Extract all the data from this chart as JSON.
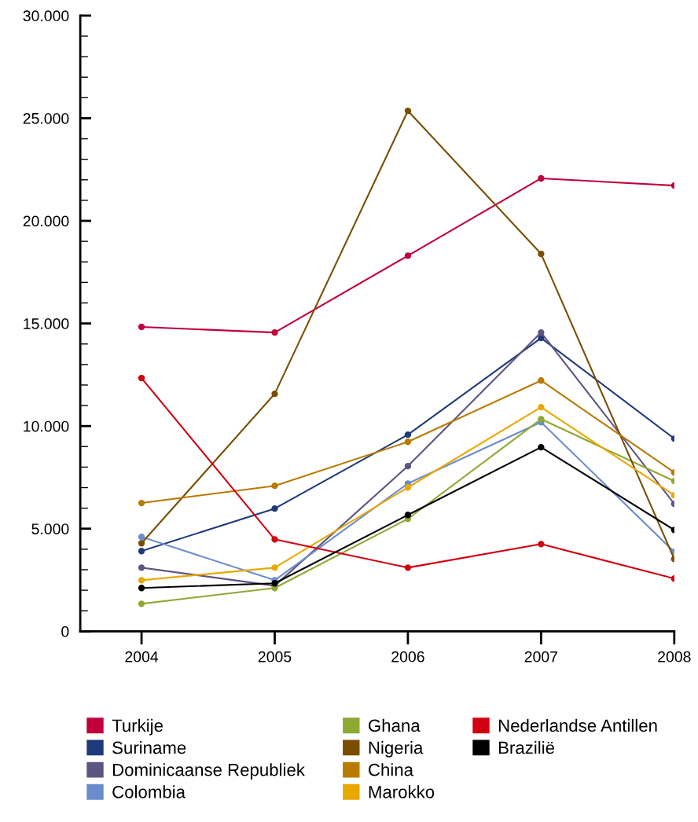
{
  "chart_data": {
    "type": "line",
    "x": [
      2004,
      2005,
      2006,
      2007,
      2008
    ],
    "xlim": [
      2003.54,
      2008
    ],
    "xticks": [
      2004,
      2005,
      2006,
      2007,
      2008
    ],
    "ylim": [
      0,
      30000
    ],
    "yticks": [
      {
        "value": 0,
        "label": "0"
      },
      {
        "value": 1000,
        "label": null
      },
      {
        "value": 2000,
        "label": null
      },
      {
        "value": 3000,
        "label": null
      },
      {
        "value": 4000,
        "label": null
      },
      {
        "value": 5000,
        "label": "5.000"
      },
      {
        "value": 6000,
        "label": null
      },
      {
        "value": 7000,
        "label": null
      },
      {
        "value": 8000,
        "label": null
      },
      {
        "value": 9000,
        "label": null
      },
      {
        "value": 10000,
        "label": "10.000"
      },
      {
        "value": 11000,
        "label": null
      },
      {
        "value": 12000,
        "label": null
      },
      {
        "value": 13000,
        "label": null
      },
      {
        "value": 14000,
        "label": null
      },
      {
        "value": 15000,
        "label": "15.000"
      },
      {
        "value": 16000,
        "label": null
      },
      {
        "value": 17000,
        "label": null
      },
      {
        "value": 18000,
        "label": null
      },
      {
        "value": 19000,
        "label": null
      },
      {
        "value": 20000,
        "label": "20.000"
      },
      {
        "value": 21000,
        "label": null
      },
      {
        "value": 22000,
        "label": null
      },
      {
        "value": 23000,
        "label": null
      },
      {
        "value": 24000,
        "label": null
      },
      {
        "value": 25000,
        "label": "25.000"
      },
      {
        "value": 26000,
        "label": null
      },
      {
        "value": 27000,
        "label": null
      },
      {
        "value": 28000,
        "label": null
      },
      {
        "value": 29000,
        "label": null
      },
      {
        "value": 30000,
        "label": "30.000"
      }
    ],
    "grid": false,
    "legend": "bottom",
    "marker": "circle",
    "line_style": "solid",
    "series": [
      {
        "name": "Turkije",
        "color": "#c0003c",
        "values": [
          14830,
          14560,
          18300,
          22070,
          21720
        ]
      },
      {
        "name": "Suriname",
        "color": "#1f3a7a",
        "values": [
          3910,
          5980,
          9580,
          14290,
          9390
        ]
      },
      {
        "name": "Dominicaanse Republiek",
        "color": "#5e5480",
        "values": [
          3100,
          2220,
          8050,
          14560,
          6210
        ]
      },
      {
        "name": "Colombia",
        "color": "#6b8ccc",
        "values": [
          4600,
          2490,
          7200,
          10190,
          3870
        ]
      },
      {
        "name": "Ghana",
        "color": "#8fa832",
        "values": [
          1340,
          2110,
          5480,
          10340,
          7320
        ]
      },
      {
        "name": "Nigeria",
        "color": "#7a4e00",
        "values": [
          4290,
          11570,
          25360,
          18390,
          3520
        ]
      },
      {
        "name": "China",
        "color": "#b87a00",
        "values": [
          6250,
          7090,
          9230,
          12220,
          7740
        ]
      },
      {
        "name": "Marokko",
        "color": "#e8a800",
        "values": [
          2490,
          3100,
          7010,
          10920,
          6630
        ]
      },
      {
        "name": "Nederlandse Antillen",
        "color": "#d00010",
        "values": [
          12340,
          4480,
          3100,
          4250,
          2570
        ]
      },
      {
        "name": "Brazilië",
        "color": "#000000",
        "values": [
          2110,
          2340,
          5670,
          8970,
          4940
        ]
      }
    ]
  }
}
